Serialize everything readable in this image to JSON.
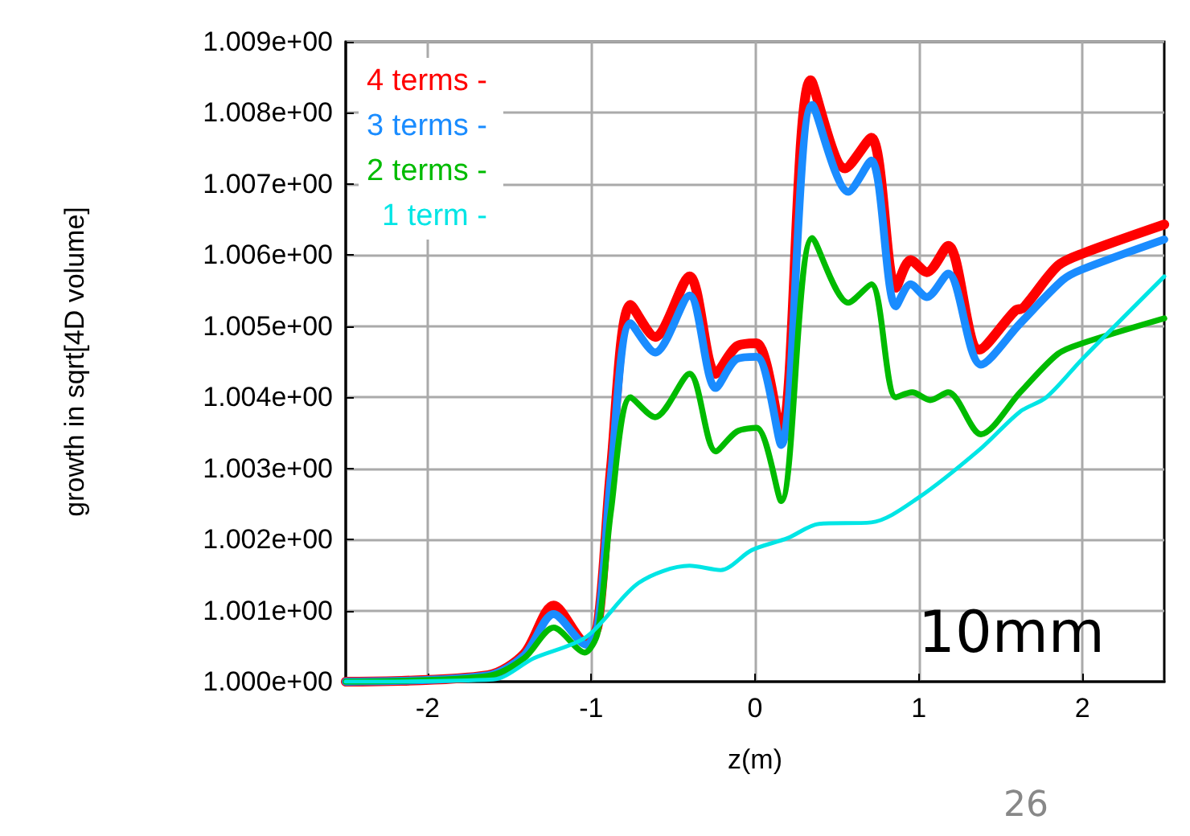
{
  "chart_data": {
    "type": "line",
    "xlabel": "z(m)",
    "ylabel": "growth in sqrt[4D volume]",
    "annotations": [
      "10mm",
      "26"
    ],
    "xlim": [
      -2.5,
      2.5
    ],
    "xticks": [
      -2,
      -1,
      0,
      1,
      2
    ],
    "ylim": [
      1.0,
      1.009
    ],
    "yticks": [
      {
        "value": 1.0,
        "label": "1.000e+00"
      },
      {
        "value": 1.001,
        "label": "1.001e+00"
      },
      {
        "value": 1.002,
        "label": "1.002e+00"
      },
      {
        "value": 1.003,
        "label": "1.003e+00"
      },
      {
        "value": 1.004,
        "label": "1.004e+00"
      },
      {
        "value": 1.005,
        "label": "1.005e+00"
      },
      {
        "value": 1.006,
        "label": "1.006e+00"
      },
      {
        "value": 1.007,
        "label": "1.007e+00"
      },
      {
        "value": 1.008,
        "label": "1.008e+00"
      },
      {
        "value": 1.009,
        "label": "1.009e+00"
      }
    ],
    "grid": true,
    "legend": "top left",
    "marker": "none",
    "line_style": "solid",
    "series": [
      {
        "name": "4 terms -",
        "color": "#ff0000",
        "x": [
          -2.5,
          -1.63,
          -1.41,
          -1.23,
          -1.03,
          -0.96,
          -0.88,
          -0.76,
          -0.61,
          -0.4,
          -0.24,
          -0.11,
          0.01,
          0.16,
          0.34,
          0.55,
          0.71,
          0.86,
          0.95,
          1.05,
          1.18,
          1.37,
          1.59,
          1.64,
          1.85,
          2.0,
          2.5
        ],
        "values": [
          1.0,
          1.00009,
          1.00039,
          1.00107,
          1.00054,
          1.0008,
          1.003,
          1.0053,
          1.00485,
          1.0057,
          1.00433,
          1.00472,
          1.00476,
          1.00348,
          1.00846,
          1.00722,
          1.00765,
          1.00554,
          1.00593,
          1.00576,
          1.00613,
          1.00467,
          1.00522,
          1.00526,
          1.00585,
          1.00602,
          1.00643
        ]
      },
      {
        "name": "3 terms -",
        "color": "#1a8cff",
        "x": [
          -2.5,
          -1.63,
          -1.41,
          -1.23,
          -1.03,
          -0.96,
          -0.88,
          -0.76,
          -0.61,
          -0.4,
          -0.24,
          -0.11,
          0.01,
          0.16,
          0.35,
          0.57,
          0.71,
          0.86,
          0.95,
          1.05,
          1.18,
          1.38,
          1.62,
          1.88,
          2.0,
          2.5
        ],
        "values": [
          1.0,
          1.00009,
          1.00037,
          1.00095,
          1.00052,
          1.0008,
          1.0029,
          1.00504,
          1.00463,
          1.00543,
          1.00413,
          1.00454,
          1.00457,
          1.00333,
          1.00811,
          1.00689,
          1.00733,
          1.00528,
          1.00559,
          1.00541,
          1.00574,
          1.00446,
          1.00504,
          1.00565,
          1.0058,
          1.00622
        ]
      },
      {
        "name": "2 terms -",
        "color": "#00bb00",
        "x": [
          -2.5,
          -1.63,
          -1.41,
          -1.23,
          -1.04,
          -0.96,
          -0.88,
          -0.76,
          -0.61,
          -0.4,
          -0.24,
          -0.11,
          0.01,
          0.16,
          0.35,
          0.57,
          0.71,
          0.86,
          0.96,
          1.07,
          1.18,
          1.38,
          1.62,
          1.85,
          2.0,
          2.5
        ],
        "values": [
          1.0,
          1.00008,
          1.00033,
          1.00076,
          1.00041,
          1.0007,
          1.0024,
          1.004,
          1.00372,
          1.00433,
          1.00324,
          1.00352,
          1.00357,
          1.00254,
          1.00624,
          1.00533,
          1.00559,
          1.004,
          1.00407,
          1.00396,
          1.00407,
          1.00348,
          1.00407,
          1.00461,
          1.00476,
          1.00511
        ]
      },
      {
        "name": "1 term -",
        "color": "#00e5e5",
        "x": [
          -2.5,
          -1.6,
          -1.35,
          -1.03,
          -0.71,
          -0.4,
          -0.21,
          -0.02,
          0.2,
          0.39,
          0.71,
          1.0,
          1.37,
          1.62,
          1.78,
          2.0,
          2.5
        ],
        "values": [
          1.0,
          1.00003,
          1.00033,
          1.00063,
          1.00139,
          1.00163,
          1.00157,
          1.00185,
          1.00202,
          1.00222,
          1.00224,
          1.00259,
          1.00326,
          1.0038,
          1.004,
          1.00454,
          1.0057
        ]
      }
    ]
  }
}
